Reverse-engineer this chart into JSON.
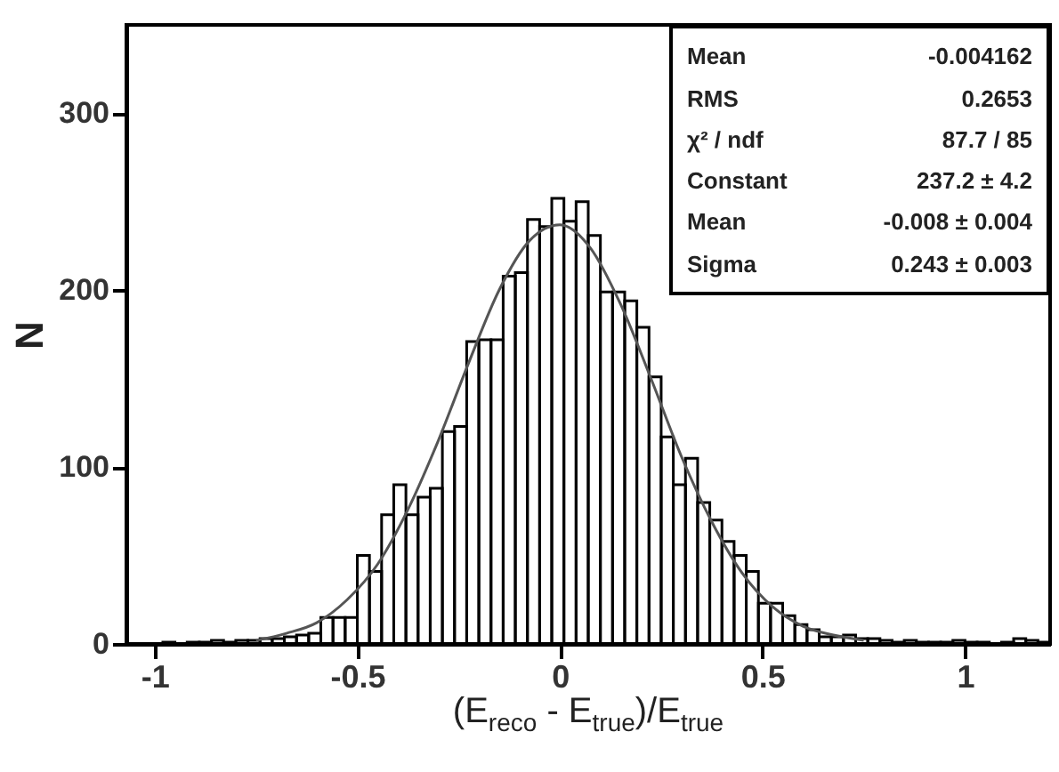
{
  "chart_data": {
    "type": "histogram",
    "xlabel": "(E$_{reco}$ - E$_{true}$)/E$_{true}$",
    "ylabel": "N",
    "bins": [
      -1.07,
      -1.04,
      -1.01,
      -0.98,
      -0.95,
      -0.92,
      -0.89,
      -0.86,
      -0.83,
      -0.8,
      -0.77,
      -0.74,
      -0.71,
      -0.68,
      -0.65,
      -0.62,
      -0.59,
      -0.56,
      -0.53,
      -0.5,
      -0.47,
      -0.44,
      -0.41,
      -0.38,
      -0.35,
      -0.32,
      -0.29,
      -0.26,
      -0.23,
      -0.2,
      -0.17,
      -0.14,
      -0.11,
      -0.08,
      -0.05,
      -0.02,
      0.01,
      0.04,
      0.07,
      0.1,
      0.13,
      0.16,
      0.19,
      0.22,
      0.25,
      0.28,
      0.31,
      0.34,
      0.37,
      0.4,
      0.43,
      0.46,
      0.49,
      0.52,
      0.55,
      0.58,
      0.61,
      0.64,
      0.67,
      0.7,
      0.73,
      0.76,
      0.79,
      0.82,
      0.85,
      0.88,
      0.91,
      0.94,
      0.97,
      1.0,
      1.03,
      1.06,
      1.09,
      1.12,
      1.15,
      1.18,
      1.21
    ],
    "values": [
      0,
      0,
      0,
      1,
      0,
      1,
      1,
      2,
      1,
      2,
      2,
      3,
      3,
      4,
      5,
      6,
      15,
      15,
      15,
      50,
      41,
      73,
      90,
      73,
      83,
      88,
      120,
      123,
      171,
      172,
      172,
      208,
      210,
      240,
      236,
      252,
      239,
      250,
      231,
      199,
      199,
      194,
      179,
      151,
      117,
      90,
      105,
      80,
      70,
      58,
      50,
      41,
      23,
      23,
      16,
      11,
      8,
      4,
      4,
      5,
      3,
      3,
      2,
      1,
      2,
      1,
      1,
      1,
      2,
      1,
      1,
      0,
      1,
      3,
      2,
      1
    ],
    "color": "#000000",
    "series": [
      {
        "type": "line",
        "color": "#555555",
        "x": [
          -0.75,
          -0.675,
          -0.6,
          -0.525,
          -0.45,
          -0.375,
          -0.3,
          -0.225,
          -0.15,
          -0.075,
          0,
          0.075,
          0.15,
          0.225,
          0.3,
          0.375,
          0.45,
          0.525,
          0.6,
          0.675,
          0.75
        ],
        "values": [
          2,
          6,
          12,
          25,
          45,
          76,
          115,
          159,
          200,
          228,
          237,
          224,
          192,
          150,
          106,
          69,
          40,
          21,
          10,
          5,
          2
        ]
      }
    ],
    "xlim": [
      -1.07,
      1.21
    ],
    "ylim": [
      0,
      350
    ],
    "xticks": [
      -1,
      -0.5,
      0,
      0.5,
      1
    ],
    "yticks": [
      0,
      100,
      200,
      300
    ],
    "grid": false,
    "annotations": [
      "Mean",
      "-0.004162",
      "RMS",
      "0.2653",
      "χ² / ndf",
      "87.7 / 85",
      "Constant",
      "237.2 ± 4.2",
      "Mean",
      "-0.008 ± 0.004",
      "Sigma",
      "0.243 ± 0.003"
    ]
  }
}
